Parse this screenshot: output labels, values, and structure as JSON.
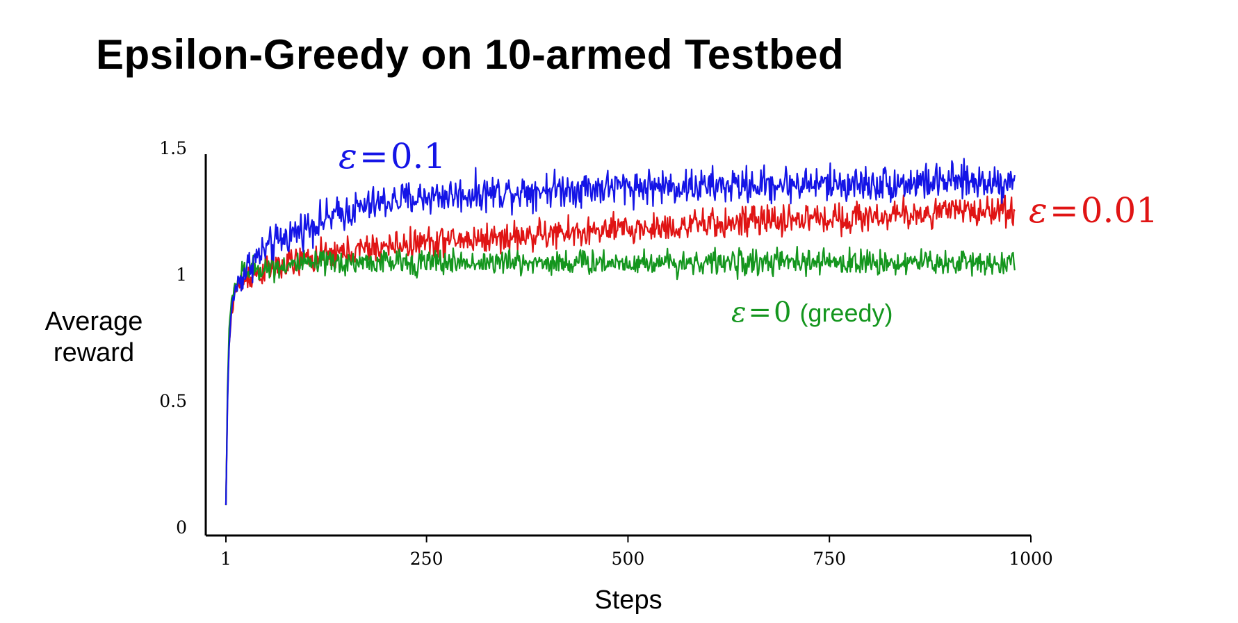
{
  "title": "Epsilon-Greedy on 10-armed Testbed",
  "chart_data": {
    "type": "line",
    "xlabel": "Steps",
    "ylabel_lines": [
      "Average",
      "reward"
    ],
    "xlim": [
      1,
      1000
    ],
    "ylim": [
      0,
      1.5
    ],
    "x_ticks": [
      {
        "value": 1,
        "label": "1"
      },
      {
        "value": 250,
        "label": "250"
      },
      {
        "value": 500,
        "label": "500"
      },
      {
        "value": 750,
        "label": "750"
      },
      {
        "value": 1000,
        "label": "1000"
      }
    ],
    "y_ticks": [
      {
        "value": 0,
        "label": "0"
      },
      {
        "value": 0.5,
        "label": "0.5"
      },
      {
        "value": 1,
        "label": "1"
      },
      {
        "value": 1.5,
        "label": "1.5"
      }
    ],
    "series": [
      {
        "label_symbol": "ε",
        "label_eq": "=",
        "label_value": "0.1",
        "label_suffix": "",
        "color": "#1414e6",
        "x": [
          1,
          3,
          5,
          8,
          12,
          20,
          30,
          50,
          75,
          100,
          150,
          200,
          250,
          300,
          400,
          500,
          600,
          700,
          800,
          900,
          980
        ],
        "y": [
          0.09,
          0.5,
          0.72,
          0.86,
          0.94,
          0.99,
          1.04,
          1.1,
          1.15,
          1.19,
          1.25,
          1.29,
          1.31,
          1.32,
          1.34,
          1.35,
          1.35,
          1.36,
          1.36,
          1.37,
          1.37
        ],
        "noise": 0.035
      },
      {
        "label_symbol": "ε",
        "label_eq": "=",
        "label_value": "0.01",
        "label_suffix": "",
        "color": "#e01414",
        "x": [
          1,
          3,
          5,
          8,
          12,
          20,
          30,
          50,
          75,
          100,
          150,
          200,
          250,
          300,
          400,
          500,
          600,
          700,
          800,
          900,
          980
        ],
        "y": [
          0.09,
          0.52,
          0.72,
          0.85,
          0.93,
          0.97,
          1.0,
          1.02,
          1.04,
          1.06,
          1.09,
          1.11,
          1.13,
          1.14,
          1.16,
          1.18,
          1.2,
          1.22,
          1.23,
          1.25,
          1.26
        ],
        "noise": 0.03
      },
      {
        "label_symbol": "ε",
        "label_eq": "=",
        "label_value": "0",
        "label_suffix": "(greedy)",
        "color": "#14961e",
        "x": [
          1,
          3,
          5,
          8,
          12,
          20,
          30,
          50,
          75,
          100,
          150,
          200,
          300,
          400,
          500,
          600,
          700,
          800,
          900,
          980
        ],
        "y": [
          0.09,
          0.55,
          0.78,
          0.9,
          0.96,
          1.0,
          1.02,
          1.03,
          1.04,
          1.04,
          1.05,
          1.05,
          1.05,
          1.05,
          1.05,
          1.05,
          1.05,
          1.05,
          1.05,
          1.05
        ],
        "noise": 0.025
      }
    ]
  }
}
